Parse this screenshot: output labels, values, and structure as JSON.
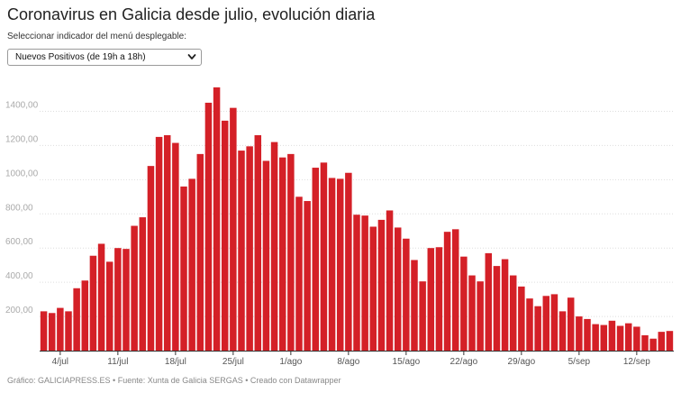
{
  "header": {
    "title": "Coronavirus en Galicia desde julio, evolución diaria",
    "subtitle": "Seleccionar indicador del menú desplegable:"
  },
  "dropdown": {
    "selected": "Nuevos Positivos (de 19h a 18h)"
  },
  "footer": {
    "text": "Gráfico: GALICIAPRESS.ES • Fuente: Xunta de Galicia SERGAS • Creado con Datawrapper"
  },
  "colors": {
    "bar": "#d42027",
    "grid": "#dddddd",
    "axis": "#333333",
    "tick_text": "#aaaaaa",
    "xtick_text": "#555555"
  },
  "chart_data": {
    "type": "bar",
    "title": "Coronavirus en Galicia desde julio, evolución diaria",
    "series_name": "Nuevos Positivos (de 19h a 18h)",
    "ylim": [
      0,
      1550
    ],
    "yticks": [
      200,
      400,
      600,
      800,
      1000,
      1200,
      1400
    ],
    "ytick_labels": [
      "200,00",
      "400,00",
      "600,00",
      "800,00",
      "1000,00",
      "1200,00",
      "1400,00"
    ],
    "xtick_labels": [
      {
        "label": "4/jul",
        "index": 2
      },
      {
        "label": "11/jul",
        "index": 9
      },
      {
        "label": "18/jul",
        "index": 16
      },
      {
        "label": "25/jul",
        "index": 23
      },
      {
        "label": "1/ago",
        "index": 30
      },
      {
        "label": "8/ago",
        "index": 37
      },
      {
        "label": "15/ago",
        "index": 44
      },
      {
        "label": "22/ago",
        "index": 51
      },
      {
        "label": "29/ago",
        "index": 58
      },
      {
        "label": "5/sep",
        "index": 65
      },
      {
        "label": "12/sep",
        "index": 72
      }
    ],
    "values": [
      230,
      220,
      250,
      230,
      365,
      410,
      555,
      625,
      520,
      600,
      595,
      730,
      780,
      1080,
      1250,
      1260,
      1215,
      960,
      1005,
      1150,
      1450,
      1540,
      1345,
      1420,
      1170,
      1195,
      1260,
      1110,
      1220,
      1130,
      1150,
      900,
      875,
      1070,
      1100,
      1010,
      1005,
      1040,
      795,
      790,
      725,
      765,
      820,
      720,
      655,
      530,
      405,
      600,
      605,
      695,
      710,
      550,
      440,
      405,
      570,
      495,
      535,
      440,
      375,
      305,
      260,
      320,
      330,
      230,
      310,
      200,
      185,
      155,
      150,
      175,
      145,
      160,
      140,
      90,
      70,
      110,
      115
    ]
  }
}
